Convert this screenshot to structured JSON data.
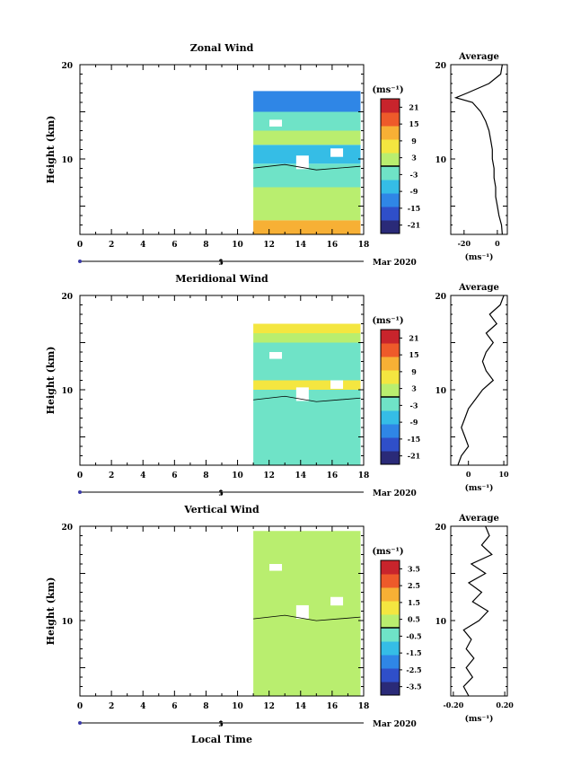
{
  "chart_data": [
    {
      "type": "heatmap",
      "title": "Zonal Wind",
      "ylabel": "Height (km)",
      "xlim": [
        0,
        18
      ],
      "ylim": [
        2,
        20
      ],
      "xticks": [
        0,
        2,
        4,
        6,
        8,
        10,
        12,
        14,
        16,
        18
      ],
      "xtick_labels": [
        "0",
        "2",
        "4",
        "6",
        "8",
        "10",
        "12",
        "14",
        "16",
        "18"
      ],
      "yticks": [
        10,
        20
      ],
      "ytick_labels": [
        "10",
        "20"
      ],
      "date_axis": {
        "label": "Mar 2020",
        "tick_label": "5"
      },
      "colorbar": {
        "unit": "(ms⁻¹)",
        "ticks": [
          "21",
          "15",
          "9",
          "3",
          "-3",
          "-9",
          "-15",
          "-21"
        ],
        "min": -24,
        "max": 24
      },
      "data_extent": {
        "x": [
          11,
          17.8
        ],
        "y": [
          2,
          17.2
        ]
      },
      "layers": [
        {
          "y": [
            2,
            3.5
          ],
          "value": 10
        },
        {
          "y": [
            3.5,
            5
          ],
          "value": 4
        },
        {
          "y": [
            5,
            7
          ],
          "value": 1
        },
        {
          "y": [
            7,
            9.5
          ],
          "value": -4
        },
        {
          "y": [
            9.5,
            11.5
          ],
          "value": -6
        },
        {
          "y": [
            11.5,
            13
          ],
          "value": 0
        },
        {
          "y": [
            13,
            15
          ],
          "value": -3
        },
        {
          "y": [
            15,
            17.2
          ],
          "value": -10
        }
      ],
      "side_profile": {
        "title": "Average",
        "xlabel": "(ms⁻¹)",
        "xticks": [
          "-20",
          "0"
        ],
        "xlim": [
          -28,
          6
        ],
        "ylim": [
          2,
          20
        ],
        "yticks": [
          "10",
          "20"
        ],
        "points": [
          [
            3,
            2
          ],
          [
            2.5,
            3
          ],
          [
            1,
            4
          ],
          [
            0,
            5
          ],
          [
            -1,
            6
          ],
          [
            -1,
            7
          ],
          [
            -2,
            8
          ],
          [
            -2,
            9
          ],
          [
            -3,
            10
          ],
          [
            -3,
            11
          ],
          [
            -4,
            12
          ],
          [
            -5,
            13
          ],
          [
            -7,
            14
          ],
          [
            -10,
            15
          ],
          [
            -15,
            16
          ],
          [
            -25,
            16.5
          ],
          [
            -18,
            17
          ],
          [
            -5,
            18
          ],
          [
            2,
            19
          ],
          [
            3,
            20
          ]
        ]
      }
    },
    {
      "type": "heatmap",
      "title": "Meridional Wind",
      "ylabel": "Height (km)",
      "xlim": [
        0,
        18
      ],
      "ylim": [
        2,
        20
      ],
      "xticks": [
        0,
        2,
        4,
        6,
        8,
        10,
        12,
        14,
        16,
        18
      ],
      "xtick_labels": [
        "0",
        "2",
        "4",
        "6",
        "8",
        "10",
        "12",
        "14",
        "16",
        "18"
      ],
      "yticks": [
        10,
        20
      ],
      "ytick_labels": [
        "10",
        "20"
      ],
      "date_axis": {
        "label": "Mar 2020",
        "tick_label": "5"
      },
      "colorbar": {
        "unit": "(ms⁻¹)",
        "ticks": [
          "21",
          "15",
          "9",
          "3",
          "-3",
          "-9",
          "-15",
          "-21"
        ],
        "min": -24,
        "max": 24
      },
      "data_extent": {
        "x": [
          11,
          17.8
        ],
        "y": [
          2,
          17
        ]
      },
      "layers": [
        {
          "y": [
            2,
            4
          ],
          "value": -3
        },
        {
          "y": [
            4,
            6
          ],
          "value": -1
        },
        {
          "y": [
            6,
            8
          ],
          "value": -4
        },
        {
          "y": [
            8,
            10
          ],
          "value": -2
        },
        {
          "y": [
            10,
            11
          ],
          "value": 5
        },
        {
          "y": [
            11,
            13
          ],
          "value": -1
        },
        {
          "y": [
            13,
            15
          ],
          "value": -2
        },
        {
          "y": [
            15,
            16
          ],
          "value": 1
        },
        {
          "y": [
            16,
            17
          ],
          "value": 8
        }
      ],
      "side_profile": {
        "title": "Average",
        "xlabel": "(ms⁻¹)",
        "xticks": [
          "0",
          "10"
        ],
        "xlim": [
          -5,
          11
        ],
        "ylim": [
          2,
          20
        ],
        "yticks": [
          "10",
          "20"
        ],
        "points": [
          [
            -3,
            2
          ],
          [
            -2,
            3
          ],
          [
            0,
            4
          ],
          [
            -1,
            5
          ],
          [
            -2,
            6
          ],
          [
            -1,
            7
          ],
          [
            0,
            8
          ],
          [
            2,
            9
          ],
          [
            4,
            10
          ],
          [
            7,
            11
          ],
          [
            5,
            12
          ],
          [
            4,
            13
          ],
          [
            5,
            14
          ],
          [
            7,
            15
          ],
          [
            5,
            16
          ],
          [
            8,
            17
          ],
          [
            6,
            18
          ],
          [
            9,
            19
          ],
          [
            10,
            20
          ]
        ]
      }
    },
    {
      "type": "heatmap",
      "title": "Vertical Wind",
      "xlabel": "Local Time",
      "ylabel": "Height (km)",
      "xlim": [
        0,
        18
      ],
      "ylim": [
        2,
        20
      ],
      "xticks": [
        0,
        2,
        4,
        6,
        8,
        10,
        12,
        14,
        16,
        18
      ],
      "xtick_labels": [
        "0",
        "2",
        "4",
        "6",
        "8",
        "10",
        "12",
        "14",
        "16",
        "18"
      ],
      "yticks": [
        10,
        20
      ],
      "ytick_labels": [
        "10",
        "20"
      ],
      "date_axis": {
        "label": "Mar 2020",
        "tick_label": "5"
      },
      "colorbar": {
        "unit": "(ms⁻¹)",
        "ticks": [
          "3.5",
          "2.5",
          "1.5",
          "0.5",
          "-0.5",
          "-1.5",
          "-2.5",
          "-3.5"
        ],
        "min": -4,
        "max": 4
      },
      "data_extent": {
        "x": [
          11,
          17.8
        ],
        "y": [
          2,
          19.5
        ]
      },
      "layers": [
        {
          "y": [
            2,
            6
          ],
          "value": 0.3
        },
        {
          "y": [
            6,
            10
          ],
          "value": 0.1
        },
        {
          "y": [
            10,
            13
          ],
          "value": 0.4
        },
        {
          "y": [
            13,
            15
          ],
          "value": 0.2
        },
        {
          "y": [
            15,
            17
          ],
          "value": 0.0
        },
        {
          "y": [
            17,
            19.5
          ],
          "value": 0.2
        }
      ],
      "side_profile": {
        "title": "Average",
        "xlabel": "(ms⁻¹)",
        "xticks": [
          "-0.20",
          "0.20"
        ],
        "xlim": [
          -0.22,
          0.22
        ],
        "ylim": [
          2,
          20
        ],
        "yticks": [
          "10",
          "20"
        ],
        "points": [
          [
            -0.08,
            2
          ],
          [
            -0.12,
            3
          ],
          [
            -0.05,
            4
          ],
          [
            -0.1,
            5
          ],
          [
            -0.04,
            6
          ],
          [
            -0.1,
            7
          ],
          [
            -0.06,
            8
          ],
          [
            -0.12,
            9
          ],
          [
            0.0,
            10
          ],
          [
            0.07,
            11
          ],
          [
            -0.05,
            12
          ],
          [
            0.02,
            13
          ],
          [
            -0.08,
            14
          ],
          [
            0.05,
            15
          ],
          [
            -0.06,
            16
          ],
          [
            0.1,
            17
          ],
          [
            0.02,
            18
          ],
          [
            0.08,
            19
          ],
          [
            0.05,
            20
          ]
        ]
      }
    }
  ]
}
